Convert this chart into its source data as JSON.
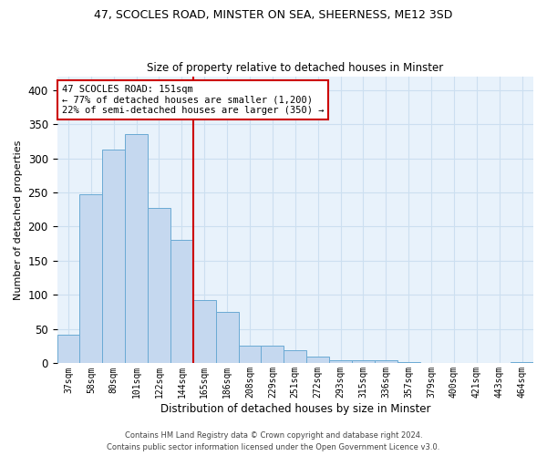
{
  "title1": "47, SCOCLES ROAD, MINSTER ON SEA, SHEERNESS, ME12 3SD",
  "title2": "Size of property relative to detached houses in Minster",
  "xlabel": "Distribution of detached houses by size in Minster",
  "ylabel": "Number of detached properties",
  "categories": [
    "37sqm",
    "58sqm",
    "80sqm",
    "101sqm",
    "122sqm",
    "144sqm",
    "165sqm",
    "186sqm",
    "208sqm",
    "229sqm",
    "251sqm",
    "272sqm",
    "293sqm",
    "315sqm",
    "336sqm",
    "357sqm",
    "379sqm",
    "400sqm",
    "421sqm",
    "443sqm",
    "464sqm"
  ],
  "values": [
    42,
    247,
    313,
    335,
    227,
    181,
    93,
    75,
    26,
    26,
    19,
    10,
    4,
    5,
    4,
    2,
    1,
    0,
    0,
    0,
    2
  ],
  "bar_color": "#c5d8ef",
  "bar_edge_color": "#6aaad4",
  "vline_x": 5.5,
  "vline_color": "#cc0000",
  "annotation_text": "47 SCOCLES ROAD: 151sqm\n← 77% of detached houses are smaller (1,200)\n22% of semi-detached houses are larger (350) →",
  "annotation_box_color": "#cc0000",
  "ylim": [
    0,
    420
  ],
  "yticks": [
    0,
    50,
    100,
    150,
    200,
    250,
    300,
    350,
    400
  ],
  "grid_color": "#ccdff0",
  "bg_color": "#e8f2fb",
  "footer1": "Contains HM Land Registry data © Crown copyright and database right 2024.",
  "footer2": "Contains public sector information licensed under the Open Government Licence v3.0."
}
